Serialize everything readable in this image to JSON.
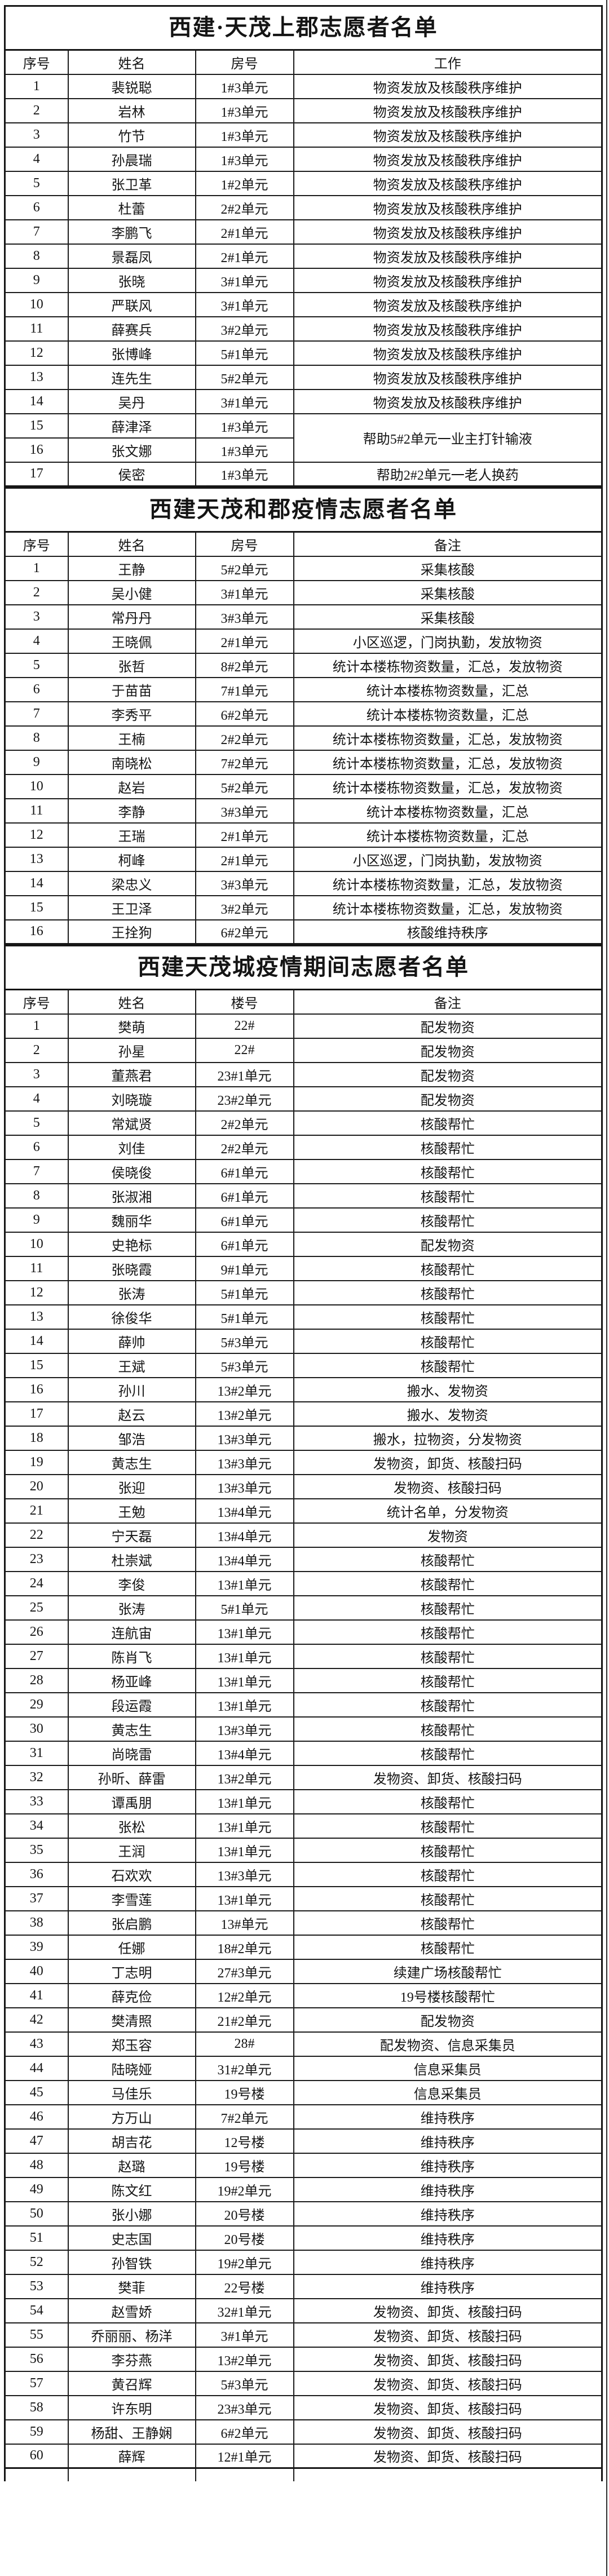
{
  "page": {
    "background_color": "#ffffff",
    "line_color": "#1c1c1c",
    "text_color": "#141414"
  },
  "sections": [
    {
      "title": "西建·天茂上郡志愿者名单",
      "columns": [
        "序号",
        "姓名",
        "房号",
        "工作"
      ],
      "rows": [
        [
          "1",
          "裴锐聪",
          "1#3单元",
          "物资发放及核酸秩序维护"
        ],
        [
          "2",
          "岩林",
          "1#3单元",
          "物资发放及核酸秩序维护"
        ],
        [
          "3",
          "竹节",
          "1#3单元",
          "物资发放及核酸秩序维护"
        ],
        [
          "4",
          "孙晨瑞",
          "1#3单元",
          "物资发放及核酸秩序维护"
        ],
        [
          "5",
          "张卫革",
          "1#2单元",
          "物资发放及核酸秩序维护"
        ],
        [
          "6",
          "杜蕾",
          "2#2单元",
          "物资发放及核酸秩序维护"
        ],
        [
          "7",
          "李鹏飞",
          "2#1单元",
          "物资发放及核酸秩序维护"
        ],
        [
          "8",
          "景磊凤",
          "2#1单元",
          "物资发放及核酸秩序维护"
        ],
        [
          "9",
          "张晓",
          "3#1单元",
          "物资发放及核酸秩序维护"
        ],
        [
          "10",
          "严联风",
          "3#1单元",
          "物资发放及核酸秩序维护"
        ],
        [
          "11",
          "薛赛兵",
          "3#2单元",
          "物资发放及核酸秩序维护"
        ],
        [
          "12",
          "张博峰",
          "5#1单元",
          "物资发放及核酸秩序维护"
        ],
        [
          "13",
          "连先生",
          "5#2单元",
          "物资发放及核酸秩序维护"
        ],
        [
          "14",
          "吴丹",
          "3#1单元",
          "物资发放及核酸秩序维护"
        ],
        [
          "15",
          "薛津泽",
          "1#3单元",
          "帮助5#2单元一业主打针输液"
        ],
        [
          "16",
          "张文娜",
          "1#3单元",
          null
        ],
        [
          "17",
          "侯密",
          "1#3单元",
          "帮助2#2单元一老人换药"
        ]
      ],
      "merges": [
        {
          "row": 14,
          "col": 3,
          "span": 2
        }
      ]
    },
    {
      "title": "西建天茂和郡疫情志愿者名单",
      "columns": [
        "序号",
        "姓名",
        "房号",
        "备注"
      ],
      "rows": [
        [
          "1",
          "王静",
          "5#2单元",
          "采集核酸"
        ],
        [
          "2",
          "吴小健",
          "3#1单元",
          "采集核酸"
        ],
        [
          "3",
          "常丹丹",
          "3#3单元",
          "采集核酸"
        ],
        [
          "4",
          "王晓佩",
          "2#1单元",
          "小区巡逻，门岗执勤，发放物资"
        ],
        [
          "5",
          "张哲",
          "8#2单元",
          "统计本楼栋物资数量，汇总，发放物资"
        ],
        [
          "6",
          "于苗苗",
          "7#1单元",
          "统计本楼栋物资数量，汇总"
        ],
        [
          "7",
          "李秀平",
          "6#2单元",
          "统计本楼栋物资数量，汇总"
        ],
        [
          "8",
          "王楠",
          "2#2单元",
          "统计本楼栋物资数量，汇总，发放物资"
        ],
        [
          "9",
          "南晓松",
          "7#2单元",
          "统计本楼栋物资数量，汇总，发放物资"
        ],
        [
          "10",
          "赵岩",
          "5#2单元",
          "统计本楼栋物资数量，汇总，发放物资"
        ],
        [
          "11",
          "李静",
          "3#3单元",
          "统计本楼栋物资数量，汇总"
        ],
        [
          "12",
          "王瑞",
          "2#1单元",
          "统计本楼栋物资数量，汇总"
        ],
        [
          "13",
          "柯峰",
          "2#1单元",
          "小区巡逻，门岗执勤，发放物资"
        ],
        [
          "14",
          "梁忠义",
          "3#3单元",
          "统计本楼栋物资数量，汇总，发放物资"
        ],
        [
          "15",
          "王卫泽",
          "3#2单元",
          "统计本楼栋物资数量，汇总，发放物资"
        ],
        [
          "16",
          "王拴狗",
          "6#2单元",
          "核酸维持秩序"
        ]
      ],
      "merges": []
    },
    {
      "title": "西建天茂城疫情期间志愿者名单",
      "columns": [
        "序号",
        "姓名",
        "楼号",
        "备注"
      ],
      "rows": [
        [
          "1",
          "樊萌",
          "22#",
          "配发物资"
        ],
        [
          "2",
          "孙星",
          "22#",
          "配发物资"
        ],
        [
          "3",
          "董燕君",
          "23#1单元",
          "配发物资"
        ],
        [
          "4",
          "刘晓璇",
          "23#2单元",
          "配发物资"
        ],
        [
          "5",
          "常斌贤",
          "2#2单元",
          "核酸帮忙"
        ],
        [
          "6",
          "刘佳",
          "2#2单元",
          "核酸帮忙"
        ],
        [
          "7",
          "侯晓俊",
          "6#1单元",
          "核酸帮忙"
        ],
        [
          "8",
          "张淑湘",
          "6#1单元",
          "核酸帮忙"
        ],
        [
          "9",
          "魏丽华",
          "6#1单元",
          "核酸帮忙"
        ],
        [
          "10",
          "史艳标",
          "6#1单元",
          "配发物资"
        ],
        [
          "11",
          "张晓霞",
          "9#1单元",
          "核酸帮忙"
        ],
        [
          "12",
          "张涛",
          "5#1单元",
          "核酸帮忙"
        ],
        [
          "13",
          "徐俊华",
          "5#1单元",
          "核酸帮忙"
        ],
        [
          "14",
          "薛帅",
          "5#3单元",
          "核酸帮忙"
        ],
        [
          "15",
          "王斌",
          "5#3单元",
          "核酸帮忙"
        ],
        [
          "16",
          "孙川",
          "13#2单元",
          "搬水、发物资"
        ],
        [
          "17",
          "赵云",
          "13#2单元",
          "搬水、发物资"
        ],
        [
          "18",
          "邹浩",
          "13#3单元",
          "搬水，拉物资，分发物资"
        ],
        [
          "19",
          "黄志生",
          "13#3单元",
          "发物资，卸货、核酸扫码"
        ],
        [
          "20",
          "张迎",
          "13#3单元",
          "发物资、核酸扫码"
        ],
        [
          "21",
          "王勉",
          "13#4单元",
          "统计名单，分发物资"
        ],
        [
          "22",
          "宁天磊",
          "13#4单元",
          "发物资"
        ],
        [
          "23",
          "杜崇斌",
          "13#4单元",
          "核酸帮忙"
        ],
        [
          "24",
          "李俊",
          "13#1单元",
          "核酸帮忙"
        ],
        [
          "25",
          "张涛",
          "5#1单元",
          "核酸帮忙"
        ],
        [
          "26",
          "连航宙",
          "13#1单元",
          "核酸帮忙"
        ],
        [
          "27",
          "陈肖飞",
          "13#1单元",
          "核酸帮忙"
        ],
        [
          "28",
          "杨亚峰",
          "13#1单元",
          "核酸帮忙"
        ],
        [
          "29",
          "段运霞",
          "13#1单元",
          "核酸帮忙"
        ],
        [
          "30",
          "黄志生",
          "13#3单元",
          "核酸帮忙"
        ],
        [
          "31",
          "尚晓雷",
          "13#4单元",
          "核酸帮忙"
        ],
        [
          "32",
          "孙昕、薛雷",
          "13#2单元",
          "发物资、卸货、核酸扫码"
        ],
        [
          "33",
          "谭禹朋",
          "13#1单元",
          "核酸帮忙"
        ],
        [
          "34",
          "张松",
          "13#1单元",
          "核酸帮忙"
        ],
        [
          "35",
          "王润",
          "13#1单元",
          "核酸帮忙"
        ],
        [
          "36",
          "石欢欢",
          "13#3单元",
          "核酸帮忙"
        ],
        [
          "37",
          "李雪莲",
          "13#1单元",
          "核酸帮忙"
        ],
        [
          "38",
          "张启鹏",
          "13#单元",
          "核酸帮忙"
        ],
        [
          "39",
          "任娜",
          "18#2单元",
          "核酸帮忙"
        ],
        [
          "40",
          "丁志明",
          "27#3单元",
          "续建广场核酸帮忙"
        ],
        [
          "41",
          "薛克俭",
          "12#2单元",
          "19号楼核酸帮忙"
        ],
        [
          "42",
          "樊清照",
          "21#2单元",
          "配发物资"
        ],
        [
          "43",
          "郑玉容",
          "28#",
          "配发物资、信息采集员"
        ],
        [
          "44",
          "陆晓娅",
          "31#2单元",
          "信息采集员"
        ],
        [
          "45",
          "马佳乐",
          "19号楼",
          "信息采集员"
        ],
        [
          "46",
          "方万山",
          "7#2单元",
          "维持秩序"
        ],
        [
          "47",
          "胡吉花",
          "12号楼",
          "维持秩序"
        ],
        [
          "48",
          "赵璐",
          "19号楼",
          "维持秩序"
        ],
        [
          "49",
          "陈文红",
          "19#2单元",
          "维持秩序"
        ],
        [
          "50",
          "张小娜",
          "20号楼",
          "维持秩序"
        ],
        [
          "51",
          "史志国",
          "20号楼",
          "维持秩序"
        ],
        [
          "52",
          "孙智铁",
          "19#2单元",
          "维持秩序"
        ],
        [
          "53",
          "樊菲",
          "22号楼",
          "维持秩序"
        ],
        [
          "54",
          "赵雪娇",
          "32#1单元",
          "发物资、卸货、核酸扫码"
        ],
        [
          "55",
          "乔丽丽、杨洋",
          "3#1单元",
          "发物资、卸货、核酸扫码"
        ],
        [
          "56",
          "李芬燕",
          "13#2单元",
          "发物资、卸货、核酸扫码"
        ],
        [
          "57",
          "黄召辉",
          "5#3单元",
          "发物资、卸货、核酸扫码"
        ],
        [
          "58",
          "许东明",
          "23#3单元",
          "发物资、卸货、核酸扫码"
        ],
        [
          "59",
          "杨甜、王静娴",
          "6#2单元",
          "发物资、卸货、核酸扫码"
        ],
        [
          "60",
          "薛辉",
          "12#1单元",
          "发物资、卸货、核酸扫码"
        ]
      ],
      "merges": []
    }
  ]
}
